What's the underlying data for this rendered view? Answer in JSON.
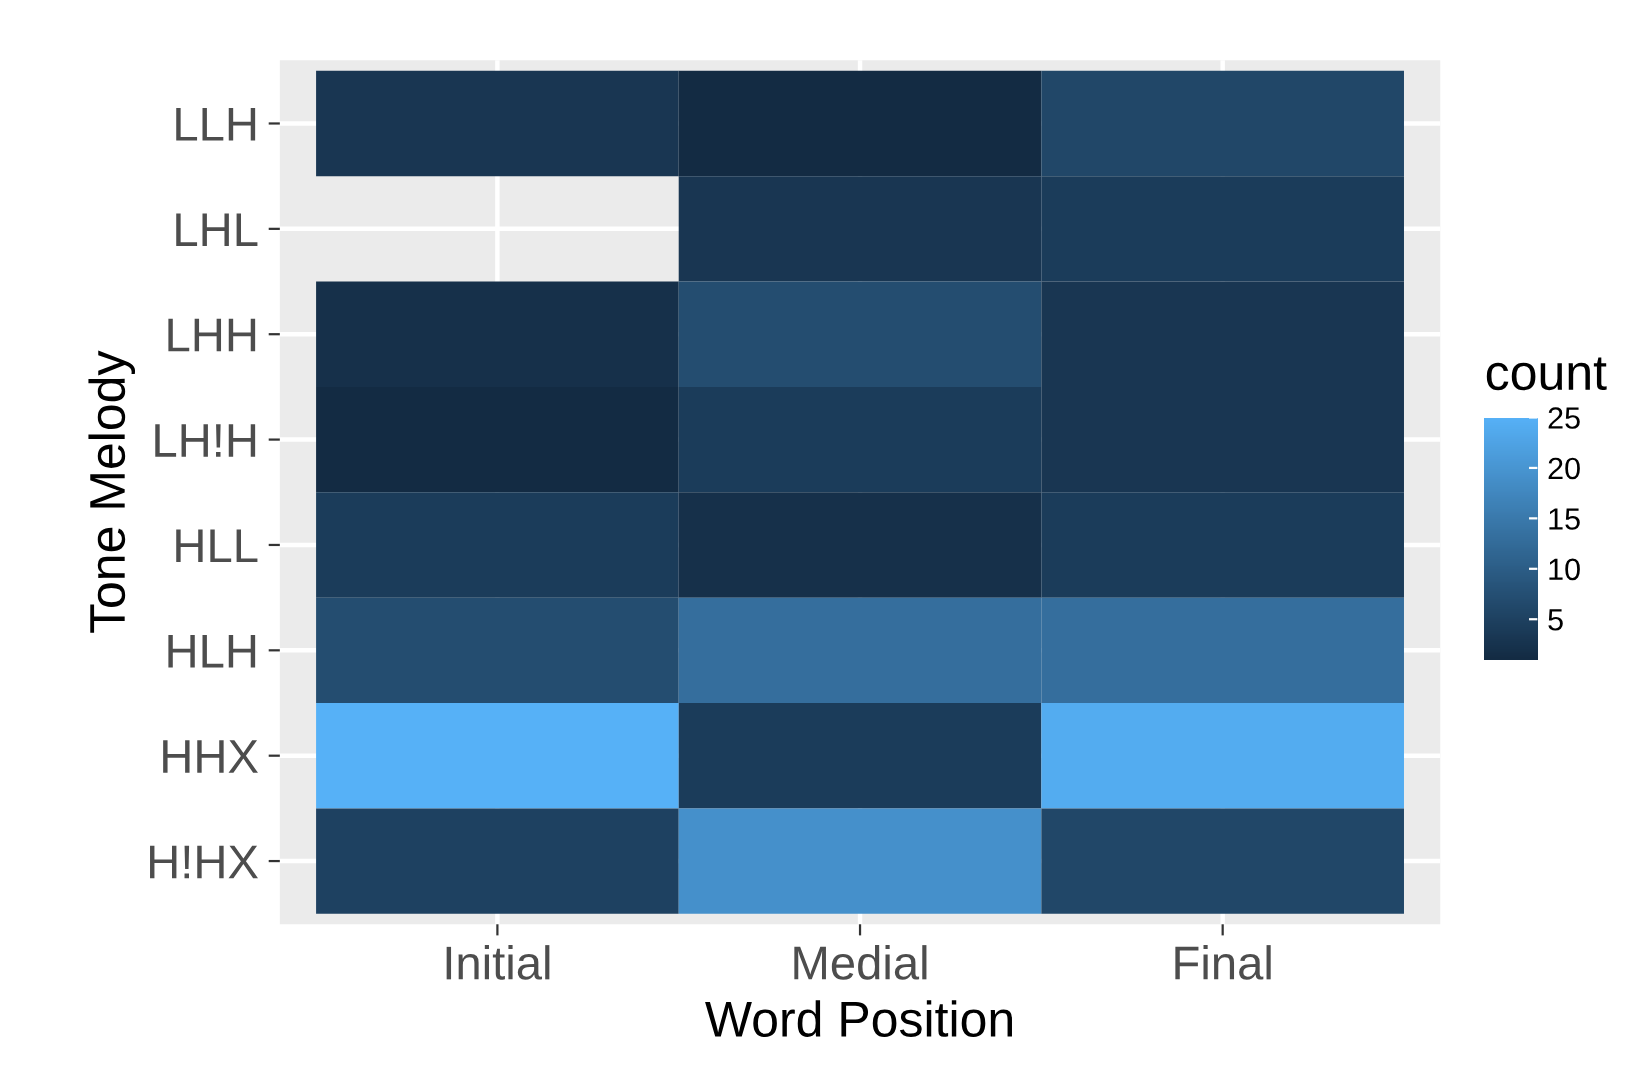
{
  "chart_data": {
    "type": "heatmap",
    "xlabel": "Word Position",
    "ylabel": "Tone Melody",
    "clabel": "count",
    "categories": [
      "Initial",
      "Medial",
      "Final"
    ],
    "y_categories": [
      "LLH",
      "LHL",
      "LHH",
      "LH!H",
      "HLL",
      "HLH",
      "HHX",
      "H!HX"
    ],
    "cells": [
      [
        3,
        1,
        6
      ],
      [
        null,
        3,
        4
      ],
      [
        2,
        7,
        3
      ],
      [
        1,
        4,
        3
      ],
      [
        4,
        2,
        4
      ],
      [
        7,
        13,
        13
      ],
      [
        25,
        4,
        24
      ],
      [
        5,
        19,
        6
      ]
    ],
    "clim": [
      1,
      25
    ],
    "cticks": [
      5,
      10,
      15,
      20,
      25
    ],
    "colors": [
      "#132b43",
      "#56b1f7"
    ],
    "grid": true
  }
}
